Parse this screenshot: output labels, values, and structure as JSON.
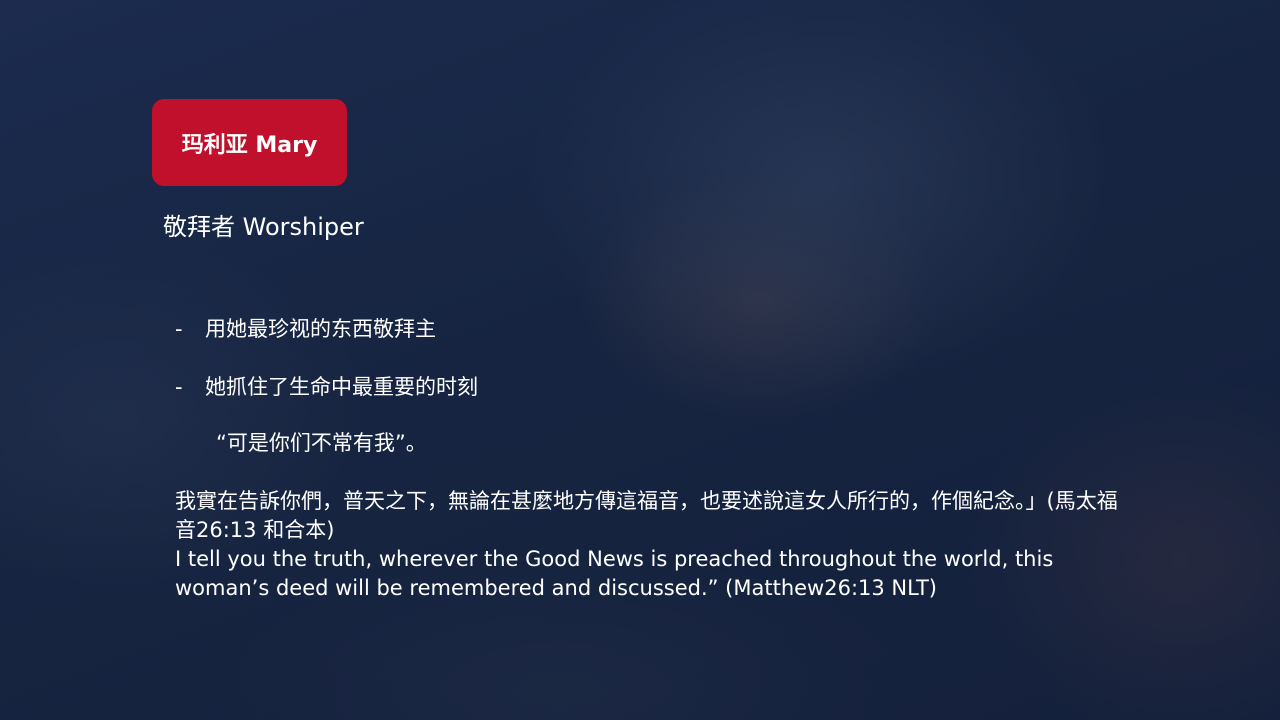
{
  "slide": {
    "title": "玛利亚 Mary",
    "subtitle": "敬拜者 Worshiper",
    "bullets": [
      "用她最珍视的东西敬拜主",
      "她抓住了生命中最重要的时刻"
    ],
    "bullet_marker": "-",
    "quote": "“可是你们不常有我”。",
    "verse_chinese": "我實在告訴你們，普天之下，無論在甚麼地方傳這福音，也要述說這女人所行的，作個紀念。」(馬太福音26:13 和合本)",
    "verse_english": "I tell you the truth, wherever the Good News is preached throughout the world, this woman’s deed will be remembered and discussed.” (Matthew26:13 NLT)"
  },
  "colors": {
    "title_box": "#c0102b",
    "background": "#1b2a45",
    "text": "#ffffff"
  }
}
